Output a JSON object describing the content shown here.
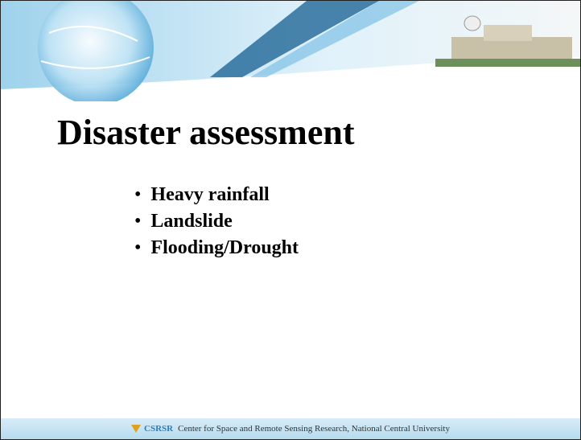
{
  "slide": {
    "title": "Disaster assessment",
    "bullets": [
      "Heavy rainfall",
      "Landslide",
      "Flooding/Drought"
    ],
    "footer": {
      "logo": "CSRSR",
      "text": "Center for Space and Remote Sensing Research, National Central University"
    }
  }
}
